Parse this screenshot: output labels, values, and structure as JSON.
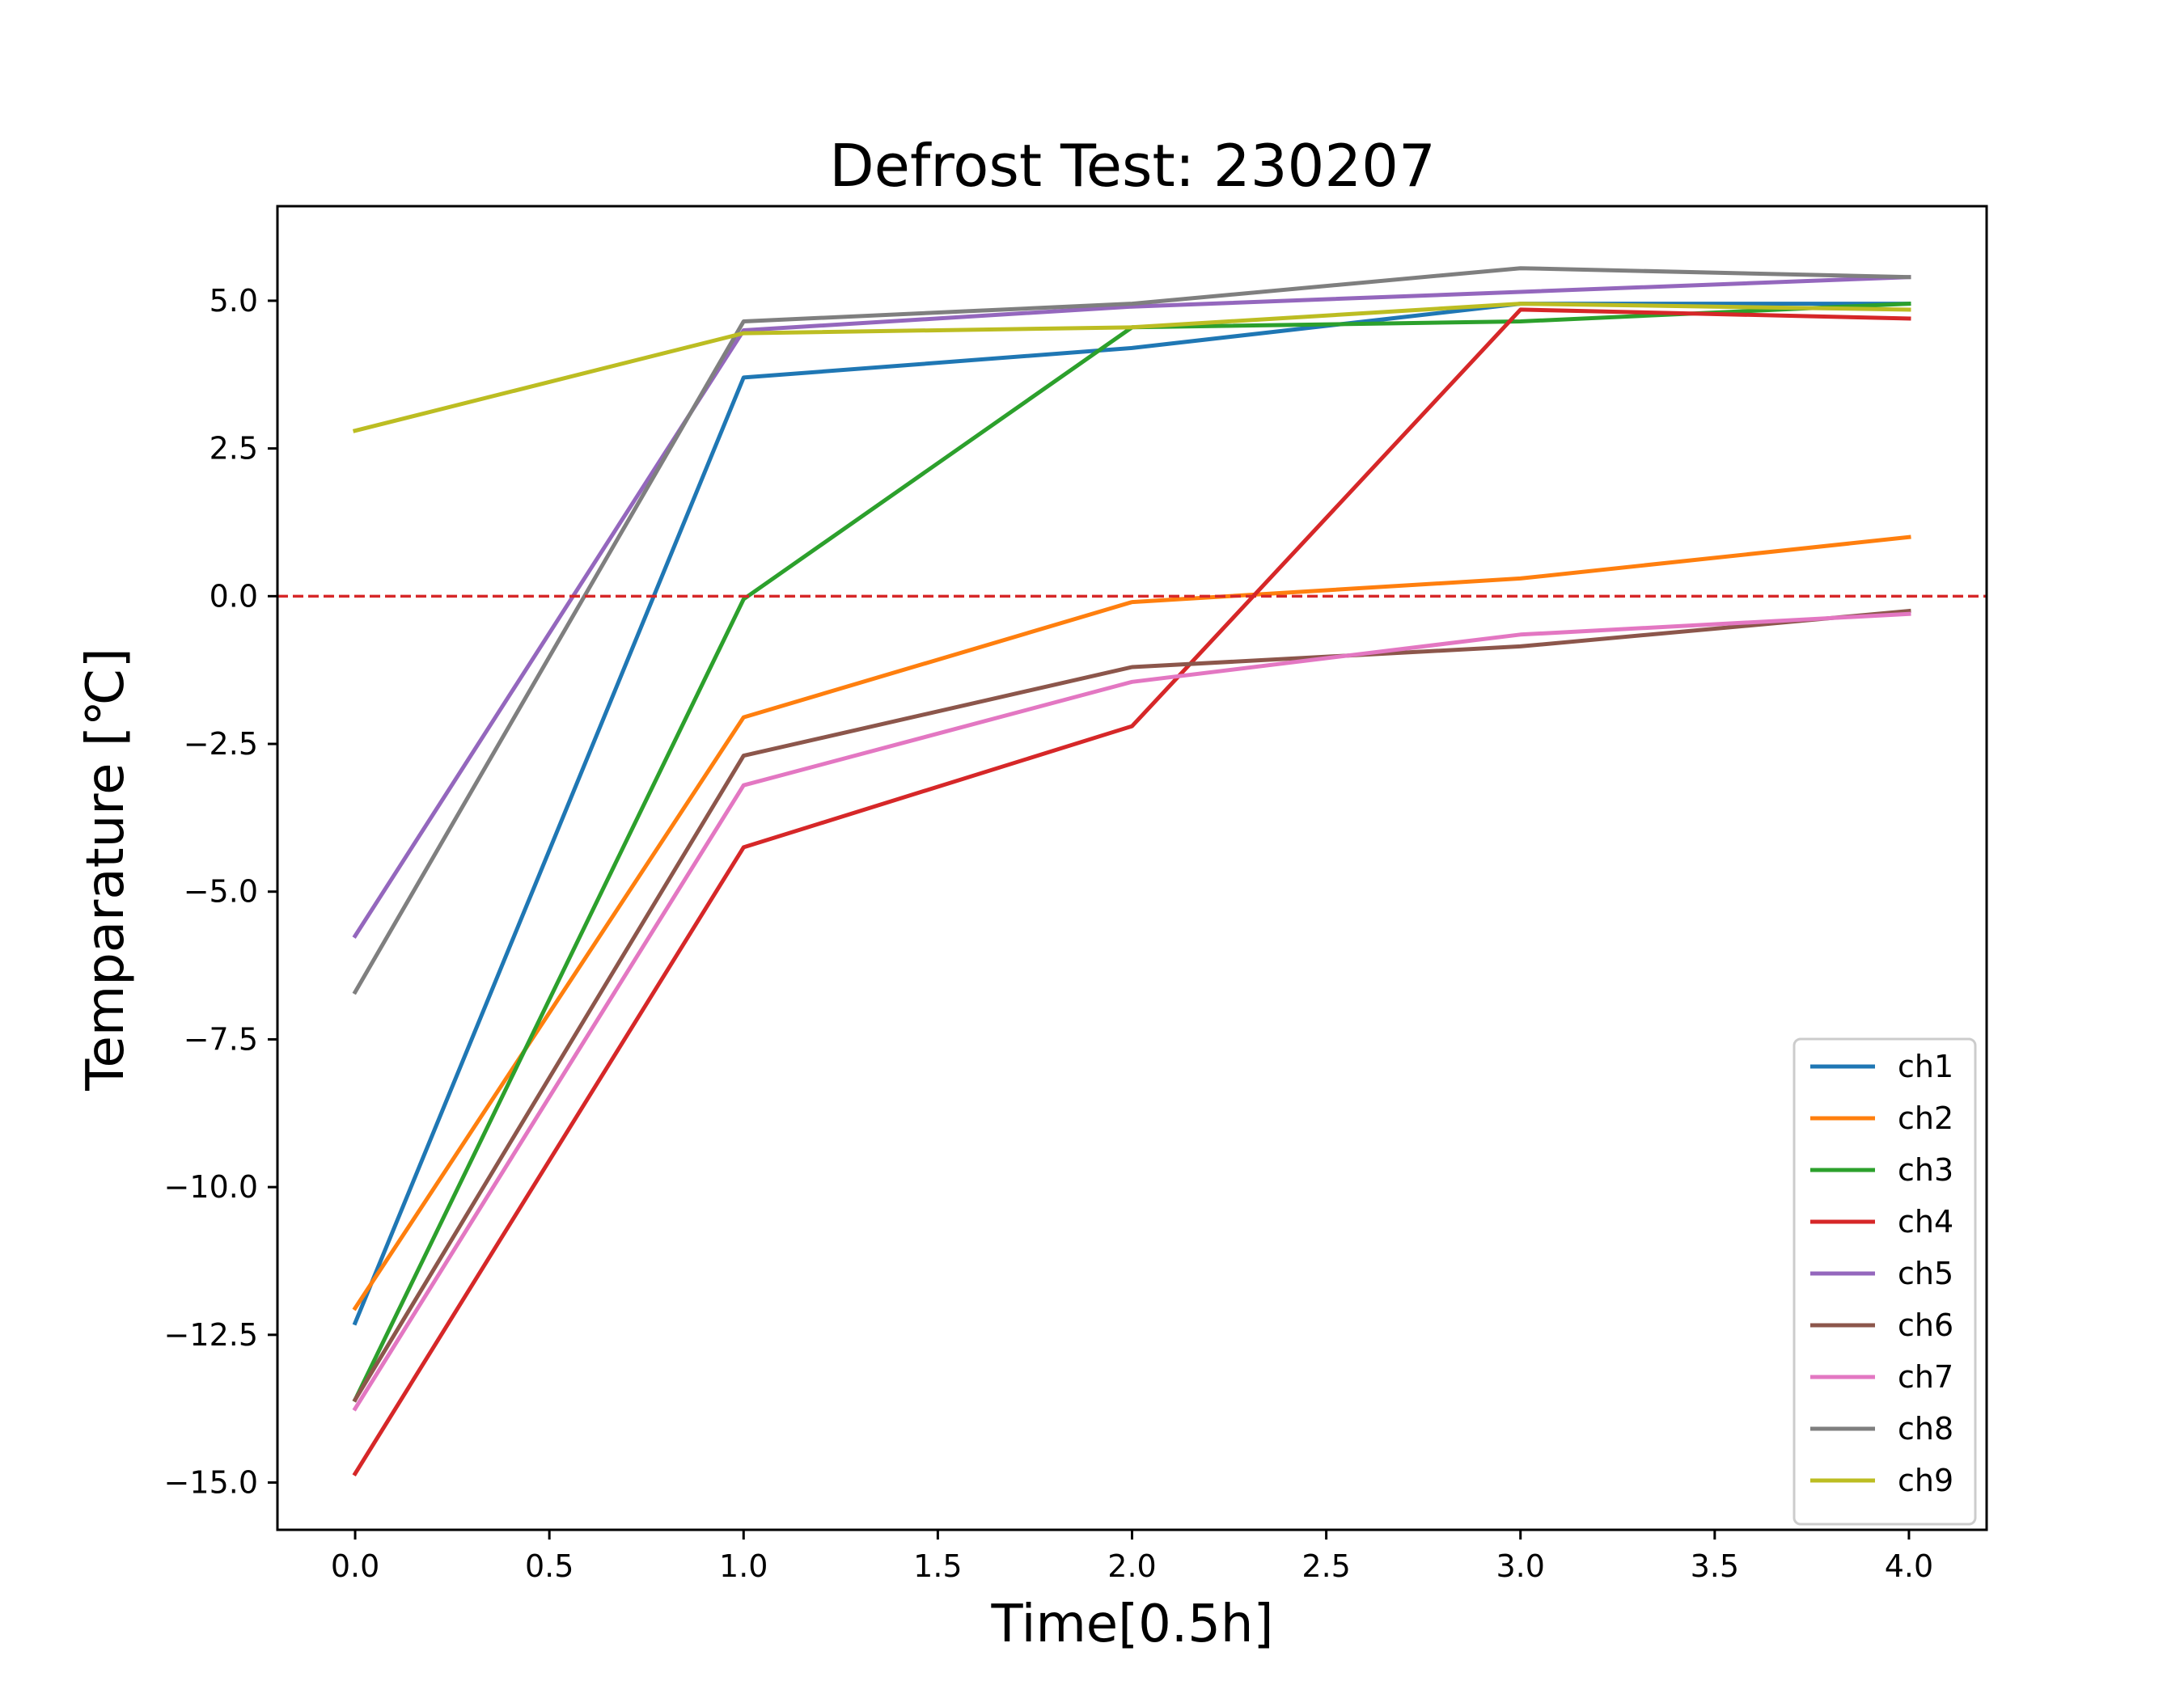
{
  "chart_data": {
    "type": "line",
    "title": "Defrost Test: 230207",
    "xlabel": "Time[0.5h]",
    "ylabel": "Temparature [℃]",
    "xlim": [
      -0.2,
      4.2
    ],
    "ylim": [
      -15.8,
      6.6
    ],
    "x_ticks": [
      "0.0",
      "0.5",
      "1.0",
      "1.5",
      "2.0",
      "2.5",
      "3.0",
      "3.5",
      "4.0"
    ],
    "y_ticks": [
      "5.0",
      "2.5",
      "0.0",
      "−2.5",
      "−5.0",
      "−7.5",
      "−10.0",
      "−12.5",
      "−15.0"
    ],
    "grid": false,
    "legend_position": "lower-right",
    "x": [
      0,
      1,
      2,
      3,
      4
    ],
    "series": [
      {
        "name": "ch1",
        "color": "#1f77b4",
        "values": [
          -12.3,
          3.7,
          4.2,
          4.95,
          4.95
        ]
      },
      {
        "name": "ch2",
        "color": "#ff7f0e",
        "values": [
          -12.05,
          -2.05,
          -0.1,
          0.3,
          1.0
        ]
      },
      {
        "name": "ch3",
        "color": "#2ca02c",
        "values": [
          -13.6,
          -0.05,
          4.55,
          4.65,
          4.95
        ]
      },
      {
        "name": "ch4",
        "color": "#d62728",
        "values": [
          -14.85,
          -4.25,
          -2.2,
          4.85,
          4.7
        ]
      },
      {
        "name": "ch5",
        "color": "#9467bd",
        "values": [
          -5.75,
          4.5,
          4.9,
          5.15,
          5.4
        ]
      },
      {
        "name": "ch6",
        "color": "#8c564b",
        "values": [
          -13.6,
          -2.7,
          -1.2,
          -0.85,
          -0.25
        ]
      },
      {
        "name": "ch7",
        "color": "#e377c2",
        "values": [
          -13.75,
          -3.2,
          -1.45,
          -0.65,
          -0.3
        ]
      },
      {
        "name": "ch8",
        "color": "#7f7f7f",
        "values": [
          -6.7,
          4.65,
          4.95,
          5.55,
          5.4
        ]
      },
      {
        "name": "ch9",
        "color": "#bcbd22",
        "values": [
          2.8,
          4.45,
          4.55,
          4.95,
          4.85
        ]
      }
    ],
    "reference_line": {
      "y": 0.0,
      "color": "#d62728",
      "style": "dashed"
    }
  }
}
